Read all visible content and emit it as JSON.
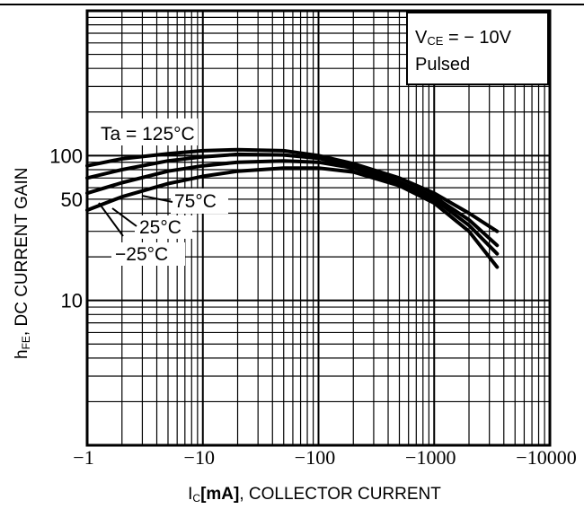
{
  "chart_data": {
    "type": "line",
    "title": "",
    "xlabel_prefix": "I",
    "xlabel_sub": "C",
    "xlabel_unit": "[mA]",
    "xlabel_rest": ", COLLECTOR CURRENT",
    "ylabel_prefix": "h",
    "ylabel_sub": "FE",
    "ylabel_rest": ", DC CURRENT GAIN",
    "x_scale": "log",
    "y_scale": "log",
    "xlim": [
      1,
      10000
    ],
    "ylim": [
      1,
      1000
    ],
    "x_ticks": [
      {
        "value": 1,
        "label": "−1"
      },
      {
        "value": 10,
        "label": "−10"
      },
      {
        "value": 100,
        "label": "−100"
      },
      {
        "value": 1000,
        "label": "−1000"
      },
      {
        "value": 10000,
        "label": "−10000"
      }
    ],
    "y_ticks": [
      {
        "value": 10,
        "label": "10"
      },
      {
        "value": 50,
        "label": "50"
      },
      {
        "value": 100,
        "label": "100"
      }
    ],
    "grid": true,
    "conditions": {
      "vce_v": "V",
      "vce_sub": "CE",
      "vce_value": " = − 10V",
      "mode": "Pulsed"
    },
    "series": [
      {
        "name": "Ta = 125°C",
        "x": [
          1,
          2,
          5,
          10,
          20,
          50,
          100,
          200,
          500,
          1000,
          2000,
          3500
        ],
        "y": [
          85,
          95,
          103,
          108,
          110,
          108,
          100,
          88,
          70,
          55,
          40,
          30
        ]
      },
      {
        "name": "75°C",
        "x": [
          1,
          2,
          5,
          10,
          20,
          50,
          100,
          200,
          500,
          1000,
          2000,
          3500
        ],
        "y": [
          70,
          80,
          92,
          98,
          102,
          101,
          96,
          84,
          66,
          52,
          36,
          24
        ]
      },
      {
        "name": "25°C",
        "x": [
          1,
          2,
          5,
          10,
          20,
          50,
          100,
          200,
          500,
          1000,
          2000,
          3500
        ],
        "y": [
          55,
          65,
          78,
          85,
          90,
          92,
          90,
          82,
          64,
          50,
          33,
          21
        ]
      },
      {
        "name": "−25°C",
        "x": [
          1,
          2,
          5,
          10,
          20,
          50,
          100,
          200,
          500,
          1000,
          2000,
          3500
        ],
        "y": [
          42,
          52,
          64,
          72,
          78,
          82,
          82,
          77,
          62,
          47,
          30,
          17
        ]
      }
    ],
    "annotations": [
      "Ta = 125°C",
      "75°C",
      "25°C",
      "−25°C"
    ]
  }
}
